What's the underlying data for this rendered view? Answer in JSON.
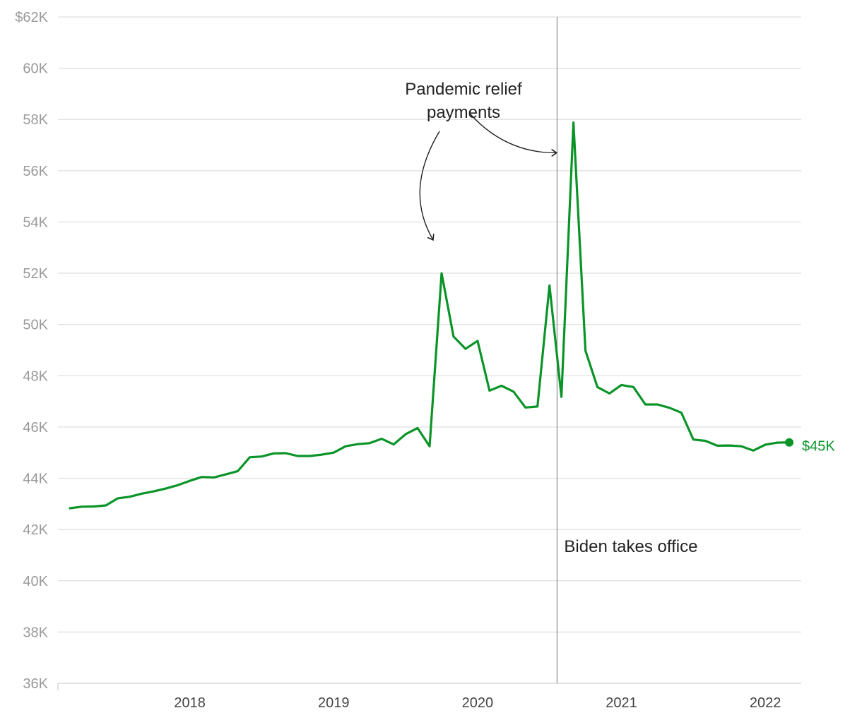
{
  "colors": {
    "line": "#0a9428",
    "grid": "#dedede",
    "axis": "#cfcfcf",
    "marker_line": "#8c8c8c",
    "arrow": "#222222"
  },
  "chart_data": {
    "type": "line",
    "title": "",
    "xlabel": "",
    "ylabel": "",
    "ylim": [
      36000,
      62000
    ],
    "yticks": [
      36000,
      38000,
      40000,
      42000,
      44000,
      46000,
      48000,
      50000,
      52000,
      54000,
      56000,
      58000,
      60000,
      62000
    ],
    "ytick_labels": [
      "36K",
      "38K",
      "40K",
      "42K",
      "44K",
      "46K",
      "48K",
      "50K",
      "52K",
      "54K",
      "56K",
      "58K",
      "60K",
      "$62K"
    ],
    "xtick_labels": [
      "2018",
      "2019",
      "2020",
      "2021",
      "2022"
    ],
    "xlim": [
      "2017-08",
      "2022-10"
    ],
    "grid": true,
    "series": [
      {
        "values": [
          {
            "x": "2017-09",
            "y": 42830
          },
          {
            "x": "2017-10",
            "y": 42890
          },
          {
            "x": "2017-11",
            "y": 42900
          },
          {
            "x": "2017-12",
            "y": 42940
          },
          {
            "x": "2018-01",
            "y": 43220
          },
          {
            "x": "2018-02",
            "y": 43280
          },
          {
            "x": "2018-03",
            "y": 43400
          },
          {
            "x": "2018-04",
            "y": 43490
          },
          {
            "x": "2018-05",
            "y": 43600
          },
          {
            "x": "2018-06",
            "y": 43730
          },
          {
            "x": "2018-07",
            "y": 43900
          },
          {
            "x": "2018-08",
            "y": 44050
          },
          {
            "x": "2018-09",
            "y": 44030
          },
          {
            "x": "2018-10",
            "y": 44150
          },
          {
            "x": "2018-11",
            "y": 44280
          },
          {
            "x": "2018-12",
            "y": 44820
          },
          {
            "x": "2019-01",
            "y": 44850
          },
          {
            "x": "2019-02",
            "y": 44970
          },
          {
            "x": "2019-03",
            "y": 44980
          },
          {
            "x": "2019-04",
            "y": 44870
          },
          {
            "x": "2019-05",
            "y": 44870
          },
          {
            "x": "2019-06",
            "y": 44920
          },
          {
            "x": "2019-07",
            "y": 45000
          },
          {
            "x": "2019-08",
            "y": 45250
          },
          {
            "x": "2019-09",
            "y": 45330
          },
          {
            "x": "2019-10",
            "y": 45370
          },
          {
            "x": "2019-11",
            "y": 45540
          },
          {
            "x": "2019-12",
            "y": 45320
          },
          {
            "x": "2020-01",
            "y": 45720
          },
          {
            "x": "2020-02",
            "y": 45960
          },
          {
            "x": "2020-03",
            "y": 45250
          },
          {
            "x": "2020-04",
            "y": 52000
          },
          {
            "x": "2020-05",
            "y": 49530
          },
          {
            "x": "2020-06",
            "y": 49050
          },
          {
            "x": "2020-07",
            "y": 49360
          },
          {
            "x": "2020-08",
            "y": 47420
          },
          {
            "x": "2020-09",
            "y": 47610
          },
          {
            "x": "2020-10",
            "y": 47380
          },
          {
            "x": "2020-11",
            "y": 46760
          },
          {
            "x": "2020-12",
            "y": 46800
          },
          {
            "x": "2021-01",
            "y": 51520
          },
          {
            "x": "2021-02",
            "y": 47180
          },
          {
            "x": "2021-03",
            "y": 57880
          },
          {
            "x": "2021-04",
            "y": 48980
          },
          {
            "x": "2021-05",
            "y": 47560
          },
          {
            "x": "2021-06",
            "y": 47310
          },
          {
            "x": "2021-07",
            "y": 47640
          },
          {
            "x": "2021-08",
            "y": 47560
          },
          {
            "x": "2021-09",
            "y": 46880
          },
          {
            "x": "2021-10",
            "y": 46880
          },
          {
            "x": "2021-11",
            "y": 46750
          },
          {
            "x": "2021-12",
            "y": 46560
          },
          {
            "x": "2022-01",
            "y": 45510
          },
          {
            "x": "2022-02",
            "y": 45460
          },
          {
            "x": "2022-03",
            "y": 45270
          },
          {
            "x": "2022-04",
            "y": 45280
          },
          {
            "x": "2022-05",
            "y": 45250
          },
          {
            "x": "2022-06",
            "y": 45080
          },
          {
            "x": "2022-07",
            "y": 45310
          },
          {
            "x": "2022-08",
            "y": 45390
          },
          {
            "x": "2022-09",
            "y": 45400
          }
        ]
      }
    ],
    "end_label": "$45K",
    "vline": {
      "x": "2021-01-20",
      "label": "Biden takes office"
    },
    "annotations": [
      {
        "text_lines": [
          "Pandemic relief",
          "payments"
        ],
        "points_to": [
          {
            "x": "2020-04",
            "y": 53300
          },
          {
            "x": "2021-01",
            "y": 56700
          }
        ]
      }
    ]
  }
}
